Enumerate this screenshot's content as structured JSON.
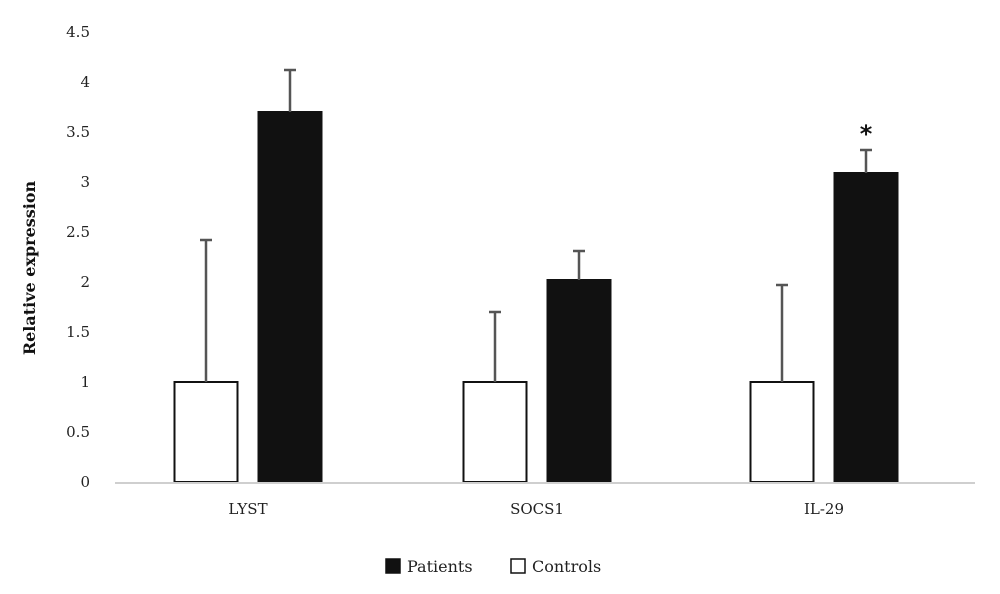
{
  "chart_data": {
    "type": "bar",
    "title": "",
    "xlabel": "",
    "ylabel": "Relative expression",
    "ylim": [
      0,
      4.5
    ],
    "yticks": [
      "0",
      "0.5",
      "1",
      "1.5",
      "2",
      "2.5",
      "3",
      "3.5",
      "4",
      "4.5"
    ],
    "grid": false,
    "legend_position": "bottom",
    "categories": [
      "LYST",
      "SOCS1",
      "IL-29"
    ],
    "series": [
      {
        "name": "Controls",
        "fill": "#ffffff",
        "stroke": "#111111",
        "values": [
          1,
          1,
          1
        ],
        "error_upper": [
          1.42,
          0.7,
          0.97
        ]
      },
      {
        "name": "Patients",
        "fill": "#111111",
        "stroke": "#111111",
        "values": [
          3.7,
          2.02,
          3.09
        ],
        "error_upper": [
          0.42,
          0.29,
          0.23
        ]
      }
    ],
    "annotations": [
      {
        "category": "IL-29",
        "series": "Patients",
        "text": "*"
      }
    ],
    "legend": [
      {
        "label": "Patients",
        "fill": "#111111"
      },
      {
        "label": "Controls",
        "fill": "#ffffff"
      }
    ],
    "colors": {
      "axis": "#cfcfcf",
      "errorbar": "#555555"
    }
  }
}
